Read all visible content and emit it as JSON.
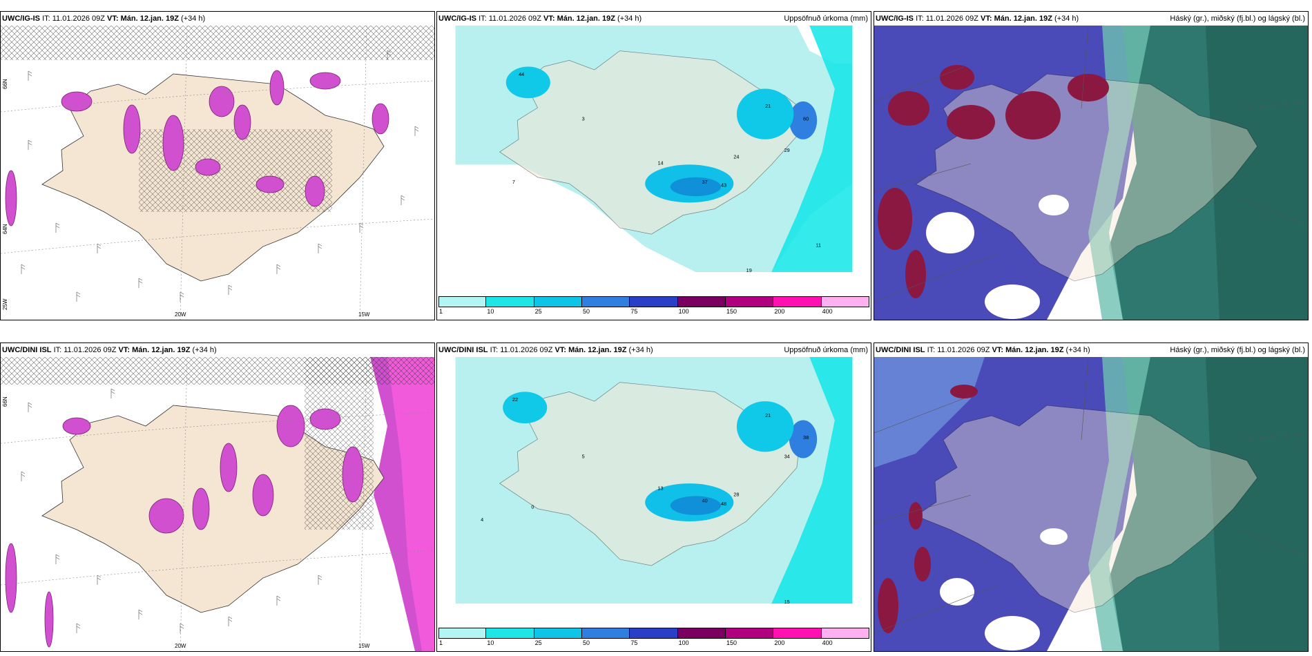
{
  "panels": {
    "p1": {
      "model": "UWC/IG-IS",
      "it": "IT: 11.01.2026 09Z",
      "vt_label": "VT:",
      "vt": "Mán. 12.jan. 19Z",
      "lead": "(+34 h)",
      "right": ""
    },
    "p2": {
      "model": "UWC/IG-IS",
      "it": "IT: 11.01.2026 09Z",
      "vt_label": "VT:",
      "vt": "Mán. 12.jan. 19Z",
      "lead": "(+34 h)",
      "right": "Uppsöfnuð úrkoma (mm)"
    },
    "p3": {
      "model": "UWC/IG-IS",
      "it": "IT: 11.01.2026 09Z",
      "vt_label": "VT:",
      "vt": "Mán. 12.jan. 19Z",
      "lead": "(+34 h)",
      "right": "Háský (gr.), miðský (fj.bl.) og lágský (bl.)"
    },
    "p4": {
      "model": "UWC/DINI ISL",
      "it": "IT: 11.01.2026 09Z",
      "vt_label": "VT:",
      "vt": "Mán. 12.jan. 19Z",
      "lead": "(+34 h)",
      "right": ""
    },
    "p5": {
      "model": "UWC/DINI ISL",
      "it": "IT: 11.01.2026 09Z",
      "vt_label": "VT:",
      "vt": "Mán. 12.jan. 19Z",
      "lead": "(+34 h)",
      "right": "Uppsöfnuð úrkoma (mm)"
    },
    "p6": {
      "model": "UWC/DINI ISL",
      "it": "IT: 11.01.2026 09Z",
      "vt_label": "VT:",
      "vt": "Mán. 12.jan. 19Z",
      "lead": "(+34 h)",
      "right": "Háský (gr.), miðský (fj.bl.) og lágský (bl.)"
    }
  },
  "axes": {
    "lon_20": "20W",
    "lon_15": "15W",
    "lon_25": "25W",
    "lat_66": "66N",
    "lat_64": "64N"
  },
  "colorbar": {
    "ticks": [
      "1",
      "10",
      "25",
      "50",
      "75",
      "100",
      "150",
      "200",
      "400"
    ],
    "colors": [
      "#b3f5f5",
      "#1ee6e6",
      "#10c4e8",
      "#2e7fe0",
      "#2a3fc8",
      "#7a0060",
      "#b00080",
      "#ff10b0",
      "#ffb0f0"
    ]
  },
  "colors": {
    "land": "#f5e6d3",
    "precip_light": "#b8f0f0",
    "precip_mid": "#10dde8",
    "precip_strong": "#10a8e0",
    "snow": "#d050d0",
    "high_cloud": "#2f7870",
    "mid_cloud": "#4a4ab8",
    "low_cloud": "#8a1840"
  }
}
